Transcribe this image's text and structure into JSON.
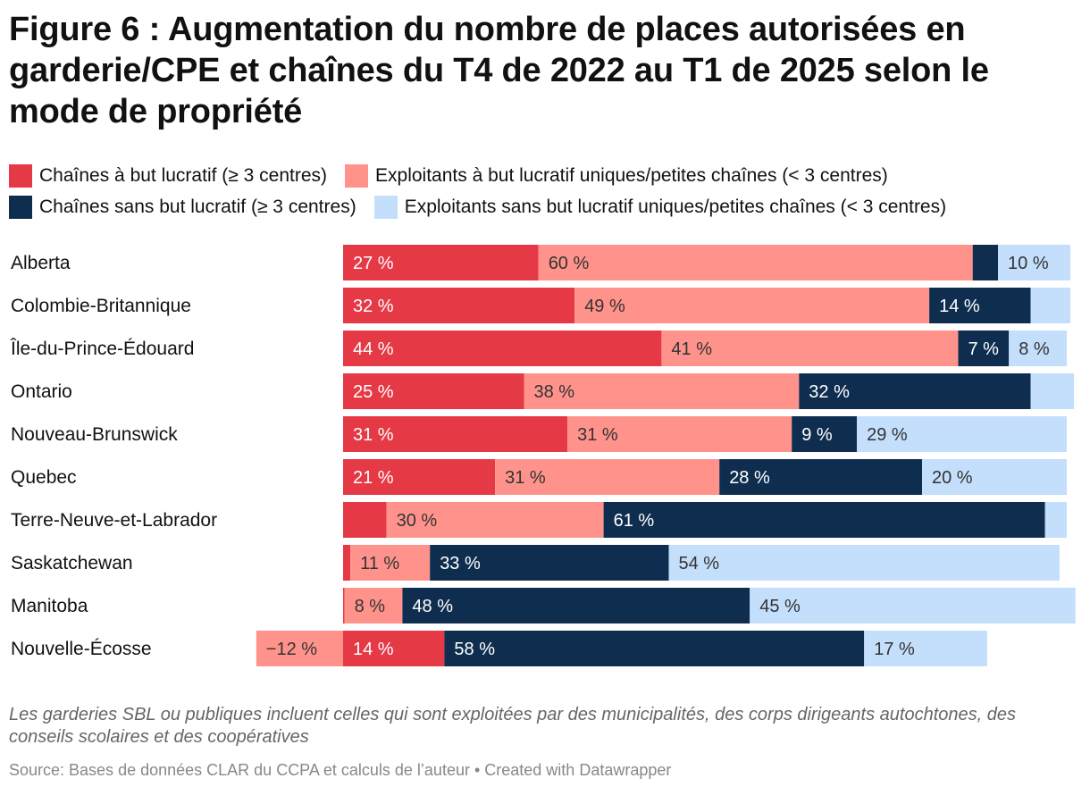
{
  "title": "Figure 6 : Augmentation du nombre de places autorisées en garderie/CPE et chaînes du T4 de 2022 au T1 de 2025 selon le mode de propriété",
  "colors": {
    "chaines_lucratif": "#e63946",
    "uniques_lucratif": "#ff938c",
    "chaines_sbl": "#0f2e4f",
    "uniques_sbl": "#c4dffc"
  },
  "legend": [
    {
      "key": "chaines_lucratif",
      "label": "Chaînes à but lucratif (≥ 3 centres)"
    },
    {
      "key": "uniques_lucratif",
      "label": "Exploitants à but lucratif uniques/petites chaînes (< 3 centres)"
    },
    {
      "key": "chaines_sbl",
      "label": "Chaînes sans but lucratif (≥ 3 centres)"
    },
    {
      "key": "uniques_sbl",
      "label": "Exploitants sans but lucratif uniques/petites chaînes (< 3 centres)"
    }
  ],
  "chart_data": {
    "type": "bar",
    "orientation": "horizontal",
    "stacked": true,
    "unit": "%",
    "categories": [
      "Alberta",
      "Colombie-Britannique",
      "Île-du-Prince-Édouard",
      "Ontario",
      "Nouveau-Brunswick",
      "Quebec",
      "Terre-Neuve-et-Labrador",
      "Saskatchewan",
      "Manitoba",
      "Nouvelle-Écosse"
    ],
    "xlim": [
      -12,
      100
    ],
    "series": [
      {
        "key": "chaines_lucratif",
        "name": "Chaînes à but lucratif (≥ 3 centres)",
        "values": [
          27,
          32,
          44,
          25,
          31,
          21,
          6,
          1,
          0.2,
          14
        ],
        "labels": [
          "27 %",
          "32 %",
          "44 %",
          "25 %",
          "31 %",
          "21 %",
          "",
          "",
          "",
          "14 %"
        ]
      },
      {
        "key": "uniques_lucratif",
        "name": "Exploitants à but lucratif uniques/petites chaînes (< 3 centres)",
        "values": [
          60,
          49,
          41,
          38,
          31,
          31,
          30,
          11,
          8,
          -12
        ],
        "labels": [
          "60 %",
          "49 %",
          "41 %",
          "38 %",
          "31 %",
          "31 %",
          "30 %",
          "11 %",
          "8 %",
          "−12 %"
        ]
      },
      {
        "key": "chaines_sbl",
        "name": "Chaînes sans but lucratif (≥ 3 centres)",
        "values": [
          3.5,
          14,
          7,
          32,
          9,
          28,
          61,
          33,
          48,
          58
        ],
        "labels": [
          "",
          "14 %",
          "7 %",
          "32 %",
          "9 %",
          "28 %",
          "61 %",
          "33 %",
          "48 %",
          "58 %"
        ]
      },
      {
        "key": "uniques_sbl",
        "name": "Exploitants sans but lucratif uniques/petites chaînes (< 3 centres)",
        "values": [
          10,
          5.5,
          8,
          6,
          29,
          20,
          3,
          54,
          45,
          17
        ],
        "labels": [
          "10 %",
          "",
          "8 %",
          "",
          "29 %",
          "20 %",
          "",
          "54 %",
          "45 %",
          "17 %"
        ]
      }
    ]
  },
  "notes": "Les garderies SBL ou publiques incluent celles qui sont exploitées par des municipalités, des corps dirigeants autochtones, des conseils scolaires et des coopératives",
  "source": "Source: Bases de données CLAR du CCPA et calculs de l’auteur • Created with Datawrapper"
}
